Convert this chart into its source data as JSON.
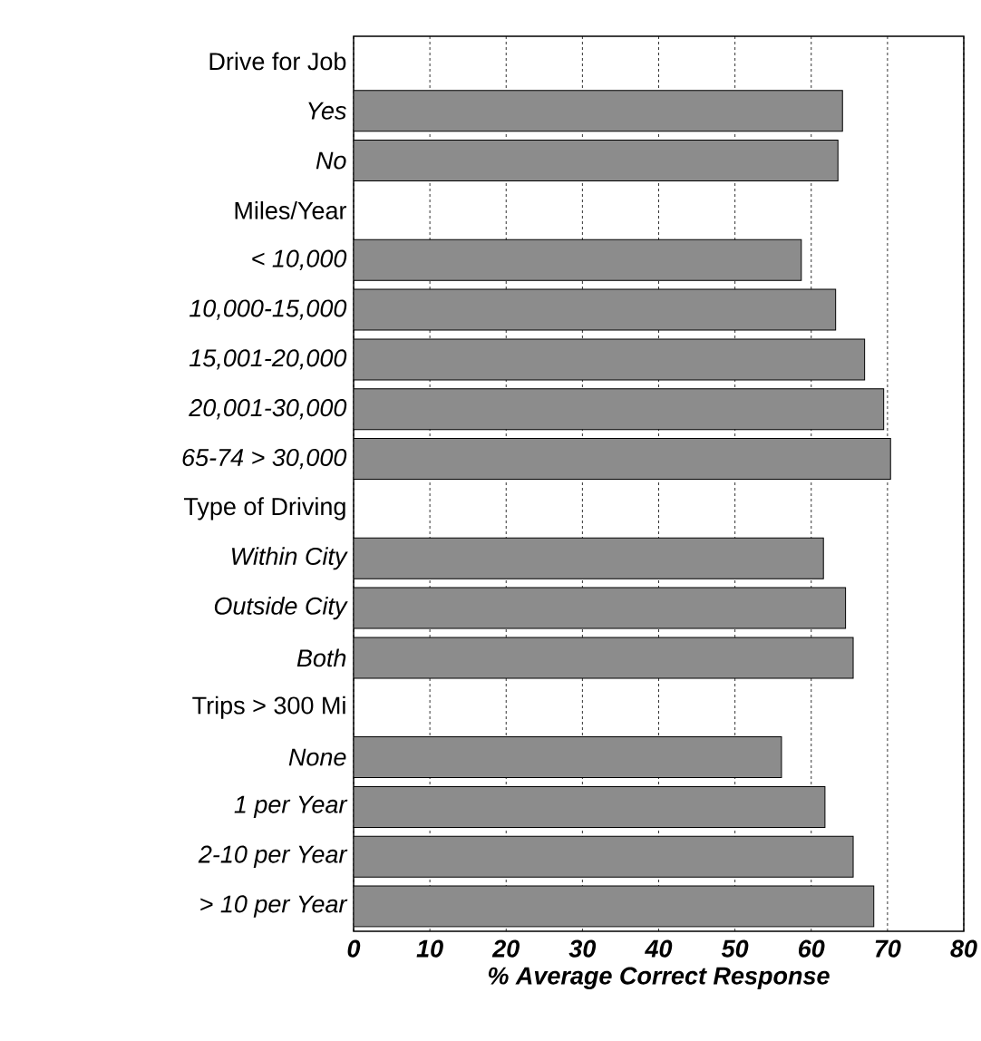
{
  "chart_data": {
    "type": "bar",
    "orientation": "horizontal",
    "xlabel": "% Average Correct Response",
    "categories": [
      "Drive for Job",
      "Yes",
      "No",
      "Miles/Year",
      "< 10,000",
      "10,000-15,000",
      "15,001-20,000",
      "20,001-30,000",
      "65-74 > 30,000",
      "Type of Driving",
      "Within City",
      "Outside City",
      "Both",
      "Trips > 300 Mi",
      "None",
      "1 per Year",
      "2-10 per Year",
      "> 10 per Year"
    ],
    "values": [
      null,
      64.1,
      63.5,
      null,
      58.7,
      63.2,
      67.0,
      69.5,
      70.4,
      null,
      61.6,
      64.5,
      65.5,
      null,
      56.1,
      61.8,
      65.5,
      68.2
    ],
    "color": "#8c8c8c",
    "xlim": [
      0,
      80
    ],
    "xticks": [
      0,
      10,
      20,
      30,
      40,
      50,
      60,
      70,
      80
    ],
    "grid": "x"
  }
}
